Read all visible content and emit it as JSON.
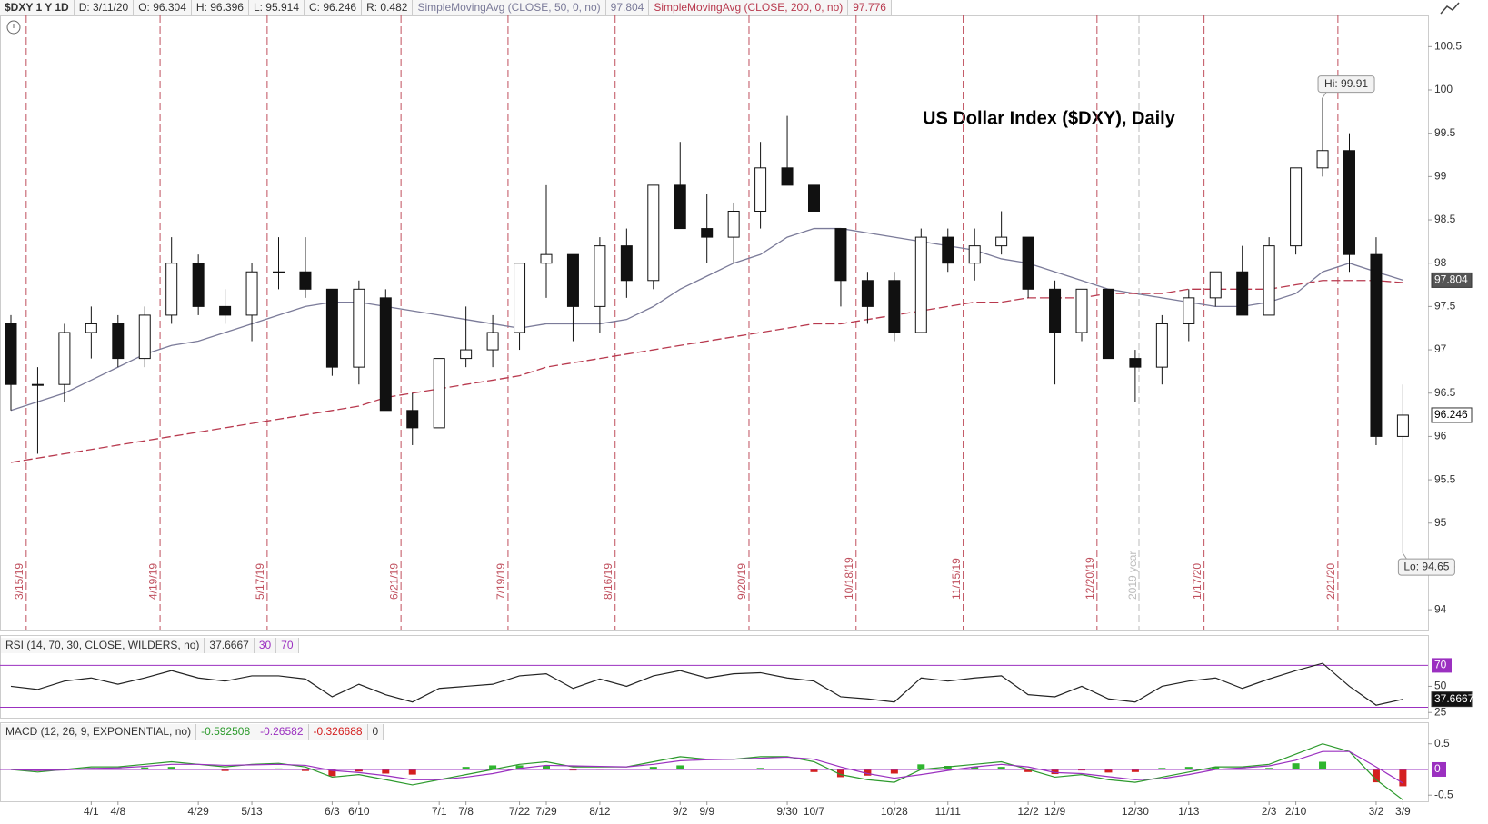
{
  "chart_data": {
    "type": "candlestick",
    "title": "US Dollar Index ($DXY), Daily",
    "symbol": "$DXY 1 Y 1D",
    "readout": [
      "D: 3/11/20",
      "O: 96.304",
      "H: 96.396",
      "L: 95.914",
      "C: 96.246",
      "R: 0.482"
    ],
    "categories": [
      null,
      null,
      null,
      "4/1",
      "4/8",
      null,
      null,
      "4/29",
      null,
      "5/13",
      null,
      null,
      "6/3",
      "6/10",
      null,
      null,
      "7/1",
      "7/8",
      null,
      "7/22",
      "7/29",
      null,
      "8/12",
      null,
      null,
      "9/2",
      "9/9",
      null,
      null,
      "9/30",
      "10/7",
      null,
      null,
      "10/28",
      null,
      "11/11",
      null,
      null,
      "12/2",
      "12/9",
      null,
      null,
      "12/30",
      null,
      "1/13",
      null,
      null,
      "2/3",
      "2/10",
      null,
      null,
      "3/2",
      "3/9"
    ],
    "open": [
      97.3,
      96.6,
      96.6,
      97.2,
      97.3,
      96.9,
      97.4,
      98.0,
      97.5,
      97.4,
      97.9,
      97.9,
      97.7,
      96.8,
      97.6,
      96.3,
      96.1,
      96.9,
      97.0,
      97.2,
      98.0,
      98.1,
      97.5,
      98.2,
      97.8,
      98.9,
      98.4,
      98.3,
      98.6,
      99.1,
      98.9,
      98.4,
      97.8,
      97.8,
      97.2,
      98.3,
      98.0,
      98.2,
      98.3,
      97.7,
      97.2,
      97.7,
      96.9,
      96.8,
      97.3,
      97.6,
      97.9,
      97.4,
      98.2,
      99.1,
      99.3,
      98.1,
      96.0
    ],
    "high": [
      97.4,
      96.8,
      97.3,
      97.5,
      97.4,
      97.5,
      98.3,
      98.1,
      97.7,
      98.0,
      98.3,
      98.3,
      97.7,
      97.8,
      97.7,
      96.5,
      96.9,
      97.5,
      97.4,
      98.0,
      98.9,
      98.1,
      98.3,
      98.4,
      98.9,
      99.4,
      98.8,
      98.7,
      99.4,
      99.7,
      99.2,
      98.4,
      97.9,
      97.9,
      98.4,
      98.4,
      98.4,
      98.6,
      98.3,
      97.8,
      97.7,
      97.7,
      97.0,
      97.4,
      97.7,
      97.9,
      98.2,
      98.3,
      99.1,
      99.91,
      99.5,
      98.3,
      96.6
    ],
    "low": [
      96.3,
      95.8,
      96.4,
      96.9,
      96.8,
      96.8,
      97.3,
      97.4,
      97.3,
      97.1,
      97.7,
      97.6,
      96.7,
      96.6,
      96.3,
      95.9,
      96.1,
      96.8,
      96.8,
      97.0,
      97.6,
      97.1,
      97.2,
      97.6,
      97.7,
      98.4,
      98.0,
      98.0,
      98.4,
      98.9,
      98.5,
      97.5,
      97.3,
      97.1,
      97.2,
      97.9,
      97.8,
      98.1,
      97.6,
      96.6,
      97.1,
      96.9,
      96.4,
      96.6,
      97.1,
      97.5,
      97.4,
      97.4,
      98.1,
      99.0,
      97.9,
      95.9,
      94.65
    ],
    "close": [
      96.6,
      96.6,
      97.2,
      97.3,
      96.9,
      97.4,
      98.0,
      97.5,
      97.4,
      97.9,
      97.9,
      97.7,
      96.8,
      97.7,
      96.3,
      96.1,
      96.9,
      97.0,
      97.2,
      98.0,
      98.1,
      97.5,
      98.2,
      97.8,
      98.9,
      98.4,
      98.3,
      98.6,
      99.1,
      98.9,
      98.6,
      97.8,
      97.5,
      97.2,
      98.3,
      98.0,
      98.2,
      98.3,
      97.7,
      97.2,
      97.7,
      96.9,
      96.8,
      97.3,
      97.6,
      97.9,
      97.4,
      98.2,
      99.1,
      99.3,
      98.1,
      96.0,
      96.246
    ],
    "series": [
      {
        "name": "SimpleMovingAvg (CLOSE, 50, 0, no)",
        "color": "#7b7b99",
        "dashed": false,
        "values": [
          96.3,
          96.4,
          96.5,
          96.65,
          96.8,
          96.95,
          97.05,
          97.1,
          97.2,
          97.3,
          97.4,
          97.5,
          97.55,
          97.55,
          97.5,
          97.45,
          97.4,
          97.35,
          97.3,
          97.25,
          97.3,
          97.3,
          97.3,
          97.35,
          97.5,
          97.7,
          97.85,
          98.0,
          98.1,
          98.3,
          98.4,
          98.4,
          98.35,
          98.3,
          98.25,
          98.2,
          98.15,
          98.05,
          98.0,
          97.9,
          97.8,
          97.7,
          97.65,
          97.6,
          97.55,
          97.5,
          97.5,
          97.55,
          97.65,
          97.9,
          98.0,
          97.9,
          97.804
        ]
      },
      {
        "name": "SimpleMovingAvg (CLOSE, 200, 0, no)",
        "color": "#b8394e",
        "dashed": true,
        "values": [
          95.7,
          95.75,
          95.8,
          95.85,
          95.9,
          95.95,
          96.0,
          96.05,
          96.1,
          96.15,
          96.2,
          96.25,
          96.3,
          96.35,
          96.45,
          96.5,
          96.55,
          96.6,
          96.65,
          96.7,
          96.8,
          96.85,
          96.9,
          96.95,
          97.0,
          97.05,
          97.1,
          97.15,
          97.2,
          97.25,
          97.3,
          97.3,
          97.35,
          97.4,
          97.45,
          97.5,
          97.55,
          97.55,
          97.6,
          97.6,
          97.6,
          97.65,
          97.65,
          97.65,
          97.7,
          97.7,
          97.7,
          97.7,
          97.75,
          97.8,
          97.8,
          97.8,
          97.776
        ]
      }
    ],
    "annotations": [
      {
        "label": "Hi: 99.91",
        "value": 99.91
      },
      {
        "label": "Lo: 94.65",
        "value": 94.65
      }
    ],
    "ylim": [
      93.76,
      100.86
    ],
    "yticks": [
      94,
      94.5,
      95,
      95.5,
      96,
      96.5,
      97,
      97.5,
      98,
      98.5,
      99,
      99.5,
      100,
      100.5
    ],
    "events": [
      "3/15/19",
      "4/19/19",
      "5/17/19",
      "6/21/19",
      "7/19/19",
      "8/16/19",
      "9/20/19",
      "10/18/19",
      "11/15/19",
      "12/20/19",
      "1/17/20",
      "2/21/20"
    ],
    "event_color": "#c0505e",
    "year_marker": "2019 year",
    "rsi": {
      "title": "RSI (14, 70, 30, CLOSE, WILDERS, no)",
      "color": "#222222",
      "band_color": "#9b30c0",
      "lower": 30,
      "upper": 70,
      "ylim": [
        20,
        99
      ],
      "yticks": [
        25,
        50
      ],
      "values": [
        50,
        47,
        55,
        58,
        52,
        58,
        65,
        58,
        55,
        60,
        60,
        57,
        40,
        52,
        42,
        35,
        48,
        50,
        52,
        60,
        62,
        48,
        57,
        50,
        60,
        65,
        58,
        62,
        63,
        58,
        55,
        40,
        38,
        35,
        58,
        55,
        58,
        60,
        42,
        40,
        50,
        38,
        35,
        50,
        55,
        58,
        48,
        57,
        65,
        72,
        50,
        32,
        37.6667
      ]
    },
    "macd": {
      "title": "MACD (12, 26, 9, EXPONENTIAL, no)",
      "zero": 0,
      "zero_color": "#9b30c0",
      "ylim": [
        -0.62,
        0.92
      ],
      "yticks": [
        -0.5,
        0.5
      ],
      "series": [
        {
          "color": "#2c9a2c",
          "values": [
            0,
            -0.05,
            0,
            0.05,
            0.05,
            0.1,
            0.15,
            0.1,
            0.05,
            0.1,
            0.12,
            0.05,
            -0.15,
            -0.1,
            -0.2,
            -0.3,
            -0.2,
            -0.1,
            0,
            0.1,
            0.15,
            0.05,
            0.05,
            0.05,
            0.15,
            0.25,
            0.2,
            0.2,
            0.25,
            0.25,
            0.15,
            -0.1,
            -0.2,
            -0.25,
            0,
            0.05,
            0.1,
            0.15,
            0,
            -0.15,
            -0.1,
            -0.2,
            -0.25,
            -0.15,
            -0.05,
            0.05,
            0.05,
            0.1,
            0.3,
            0.5,
            0.35,
            -0.2,
            -0.592508
          ]
        },
        {
          "color": "#9b30c0",
          "values": [
            0,
            -0.02,
            -0.01,
            0.02,
            0.03,
            0.06,
            0.1,
            0.1,
            0.08,
            0.09,
            0.1,
            0.08,
            -0.02,
            -0.06,
            -0.12,
            -0.2,
            -0.2,
            -0.15,
            -0.08,
            0.02,
            0.08,
            0.07,
            0.06,
            0.05,
            0.1,
            0.17,
            0.19,
            0.2,
            0.22,
            0.24,
            0.2,
            0.05,
            -0.08,
            -0.17,
            -0.1,
            -0.02,
            0.05,
            0.1,
            0.05,
            -0.06,
            -0.08,
            -0.14,
            -0.2,
            -0.18,
            -0.1,
            0,
            0.03,
            0.07,
            0.18,
            0.35,
            0.35,
            0.05,
            -0.26582
          ]
        }
      ],
      "histogram": {
        "up_color": "#2fb52f",
        "down_color": "#d42020",
        "values": [
          0,
          -0.03,
          0.01,
          0.03,
          0.02,
          0.04,
          0.05,
          0,
          -0.03,
          0.01,
          0.02,
          -0.03,
          -0.13,
          -0.04,
          -0.08,
          -0.1,
          0,
          0.05,
          0.08,
          0.08,
          0.07,
          -0.02,
          -0.01,
          0,
          0.05,
          0.08,
          0.01,
          0,
          0.03,
          0.01,
          -0.05,
          -0.15,
          -0.12,
          -0.08,
          0.1,
          0.07,
          0.05,
          0.05,
          -0.05,
          -0.09,
          -0.02,
          -0.06,
          -0.05,
          0.03,
          0.05,
          0.05,
          0.02,
          0.03,
          0.12,
          0.15,
          0,
          -0.25,
          -0.326688
        ]
      }
    }
  }
}
